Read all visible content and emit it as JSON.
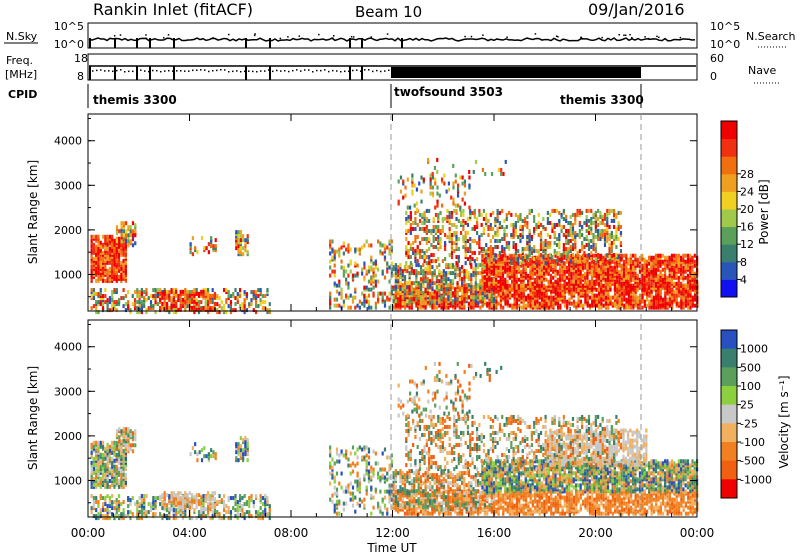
{
  "header": {
    "station": "Rankin Inlet (fitACF)",
    "beam": "Beam 10",
    "date": "09/Jan/2016"
  },
  "status_panel": {
    "left_label_1": "N.Sky",
    "left_ticks_1": [
      "10^5",
      "10^0"
    ],
    "right_label_1": "N.Search",
    "right_ticks_1": [
      "10^5",
      "10^0"
    ],
    "left_label_2a": "Freq.",
    "left_label_2b": "[MHz]",
    "left_ticks_2": [
      "18",
      "8"
    ],
    "right_label_2": "Nave",
    "right_ticks_2": [
      "60",
      "0"
    ],
    "cpid_label": "CPID",
    "modes": [
      "themis 3300",
      "twofsound 3503",
      "themis 3300"
    ]
  },
  "chart_data": [
    {
      "type": "heatmap",
      "panel": "power",
      "ylabel": "Slant Range [km]",
      "yticks": [
        "1000",
        "2000",
        "3000",
        "4000"
      ],
      "ylim": [
        180,
        4600
      ],
      "xlim": [
        "00:00",
        "24:00"
      ],
      "colorbar_label": "Power [dB]",
      "colorbar_ticks": [
        "4",
        "8",
        "12",
        "16",
        "20",
        "24",
        "28"
      ],
      "colorbar_colors": [
        "#1010f0",
        "#2a55b8",
        "#3a7f6e",
        "#5aa05a",
        "#a0c84a",
        "#f0d020",
        "#f0a020",
        "#f07010",
        "#f03010",
        "#f00000"
      ]
    },
    {
      "type": "heatmap",
      "panel": "velocity",
      "ylabel": "Slant Range [km]",
      "yticks": [
        "1000",
        "2000",
        "3000",
        "4000"
      ],
      "ylim": [
        180,
        4600
      ],
      "xlim": [
        "00:00",
        "24:00"
      ],
      "colorbar_label": "Velocity [m s⁻¹]",
      "colorbar_ticks": [
        "1000",
        "500",
        "100",
        "25",
        "-25",
        "-100",
        "-500",
        "-1000"
      ],
      "colorbar_colors": [
        "#2850c0",
        "#3a7f6e",
        "#5aa05a",
        "#8cd040",
        "#c8c8c8",
        "#f0b060",
        "#f08020",
        "#f06010",
        "#f00000"
      ]
    }
  ],
  "xaxis": {
    "label": "Time UT",
    "ticks": [
      "00:00",
      "04:00",
      "08:00",
      "12:00",
      "16:00",
      "20:00",
      "00:00"
    ]
  }
}
